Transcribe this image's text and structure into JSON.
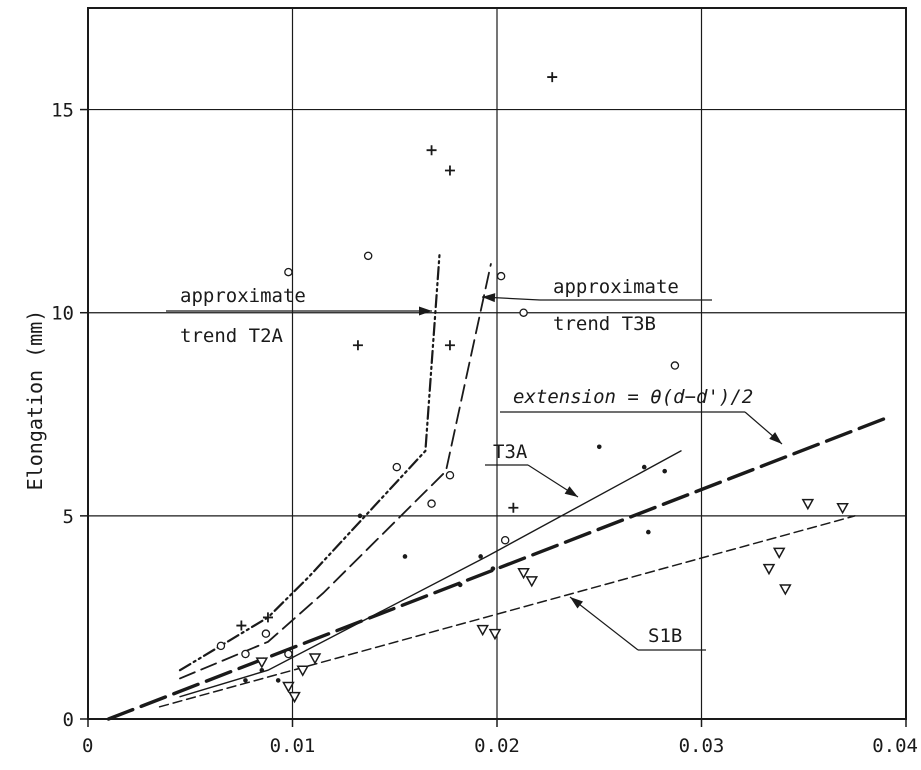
{
  "chart_data": {
    "type": "scatter",
    "title": "",
    "xlabel": "",
    "ylabel": "Elongation (mm)",
    "xlim": [
      0,
      0.04
    ],
    "ylim": [
      0,
      17.5
    ],
    "x_ticks": [
      0,
      0.01,
      0.02,
      0.03,
      0.04
    ],
    "x_tick_labels": [
      "0",
      "0.01",
      "0.02",
      "0.03",
      "0.04"
    ],
    "y_ticks": [
      0,
      5,
      10,
      15
    ],
    "y_tick_labels": [
      "0",
      "5",
      "10",
      "15"
    ],
    "grid": true,
    "lines": [
      {
        "label": "approximate trend T2A",
        "style": "dash-dot-dot",
        "points": [
          [
            0.0045,
            1.2
          ],
          [
            0.0088,
            2.5
          ],
          [
            0.0108,
            3.5
          ],
          [
            0.0165,
            6.6
          ],
          [
            0.0172,
            11.5
          ]
        ]
      },
      {
        "label": "approximate trend T3B",
        "style": "long-dash",
        "points": [
          [
            0.0045,
            1.0
          ],
          [
            0.0088,
            1.9
          ],
          [
            0.0115,
            3.1
          ],
          [
            0.0175,
            6.1
          ],
          [
            0.0197,
            11.2
          ]
        ]
      },
      {
        "label": "T3A",
        "style": "solid-thin",
        "points": [
          [
            0.0045,
            0.55
          ],
          [
            0.0088,
            1.2
          ],
          [
            0.0195,
            4.0
          ],
          [
            0.029,
            6.6
          ]
        ]
      },
      {
        "label": "extension = θ(d−d')/2",
        "style": "heavy-dash",
        "points": [
          [
            0.001,
            0.0
          ],
          [
            0.039,
            7.4
          ]
        ]
      },
      {
        "label": "S1B",
        "style": "short-dash",
        "points": [
          [
            0.0035,
            0.3
          ],
          [
            0.0375,
            5.0
          ]
        ]
      }
    ],
    "series": [
      {
        "marker": "plus",
        "points": [
          [
            0.0075,
            2.3
          ],
          [
            0.0088,
            2.5
          ],
          [
            0.0132,
            9.2
          ],
          [
            0.0168,
            14.0
          ],
          [
            0.0177,
            13.5
          ],
          [
            0.0177,
            9.2
          ],
          [
            0.0208,
            5.2
          ],
          [
            0.0227,
            15.8
          ]
        ]
      },
      {
        "marker": "circle",
        "points": [
          [
            0.0065,
            1.8
          ],
          [
            0.0077,
            1.6
          ],
          [
            0.0087,
            2.1
          ],
          [
            0.0098,
            1.6
          ],
          [
            0.0098,
            11.0
          ],
          [
            0.0137,
            11.4
          ],
          [
            0.0151,
            6.2
          ],
          [
            0.0168,
            5.3
          ],
          [
            0.0177,
            6.0
          ],
          [
            0.0202,
            10.9
          ],
          [
            0.0213,
            10.0
          ],
          [
            0.0204,
            4.4
          ],
          [
            0.0287,
            8.7
          ]
        ]
      },
      {
        "marker": "dot",
        "points": [
          [
            0.0077,
            0.95
          ],
          [
            0.0085,
            1.2
          ],
          [
            0.0093,
            0.95
          ],
          [
            0.0133,
            5.0
          ],
          [
            0.0155,
            4.0
          ],
          [
            0.0182,
            3.3
          ],
          [
            0.0192,
            4.0
          ],
          [
            0.0198,
            3.7
          ],
          [
            0.025,
            6.7
          ],
          [
            0.0272,
            6.2
          ],
          [
            0.0282,
            6.1
          ],
          [
            0.0274,
            4.6
          ]
        ]
      },
      {
        "marker": "triangle",
        "points": [
          [
            0.0085,
            1.4
          ],
          [
            0.0098,
            0.8
          ],
          [
            0.0101,
            0.55
          ],
          [
            0.0105,
            1.2
          ],
          [
            0.0111,
            1.5
          ],
          [
            0.0193,
            2.2
          ],
          [
            0.0199,
            2.1
          ],
          [
            0.0213,
            3.6
          ],
          [
            0.0217,
            3.4
          ],
          [
            0.0333,
            3.7
          ],
          [
            0.0338,
            4.1
          ],
          [
            0.0341,
            3.2
          ],
          [
            0.0352,
            5.3
          ],
          [
            0.0369,
            5.2
          ]
        ]
      }
    ],
    "annotations": [
      {
        "lines": [
          "approximate",
          "trend T2A"
        ]
      },
      {
        "lines": [
          "approximate",
          "trend T3B"
        ]
      },
      {
        "lines": [
          "extension = θ(d−d')/2"
        ]
      },
      {
        "lines": [
          "T3A"
        ]
      },
      {
        "lines": [
          "S1B"
        ]
      }
    ]
  }
}
